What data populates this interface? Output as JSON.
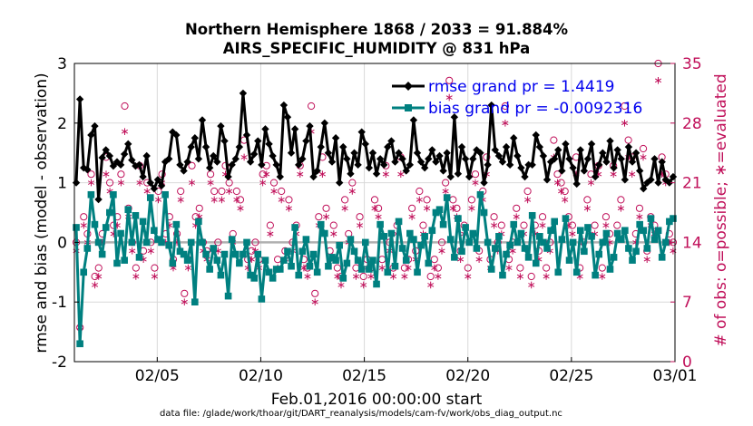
{
  "chart_data": {
    "type": "line",
    "title_line1": "Northern Hemisphere 1868 / 2033 = 91.884%",
    "title_line2": "AIRS_SPECIFIC_HUMIDITY @ 831 hPa",
    "ylabel_left": "rmse and bias (model - observation)",
    "ylabel_right": "# of obs: o=possible; ∗=evaluated",
    "xlabel": "Feb.01,2016 00:00:00 start",
    "footnote": "data file: /glade/work/thoar/git/DART_reanalysis/models/cam-fv/work/obs_diag_output.nc",
    "ylim_left": [
      -2,
      3
    ],
    "ylim_right": [
      0,
      35
    ],
    "xlim": [
      1,
      30
    ],
    "yticks_left": [
      "-2",
      "-1",
      "0",
      "1",
      "2",
      "3"
    ],
    "yticks_right": [
      "0",
      "7",
      "14",
      "21",
      "28",
      "35"
    ],
    "x_ticks": [
      {
        "label": "02/05",
        "value": 5
      },
      {
        "label": "02/10",
        "value": 10
      },
      {
        "label": "02/15",
        "value": 15
      },
      {
        "label": "02/20",
        "value": 20
      },
      {
        "label": "02/25",
        "value": 25
      },
      {
        "label": "03/01",
        "value": 30
      }
    ],
    "colors": {
      "rmse": "#000000",
      "bias": "#008080",
      "obs": "#c0105a",
      "zero": "#b0b0b0",
      "grid": "#d9d9d9"
    },
    "series": [
      {
        "name": "rmse",
        "legend": "rmse grand pr = 1.4419",
        "marker": "diamond",
        "values": [
          1.0,
          2.4,
          1.25,
          1.22,
          1.8,
          1.95,
          0.72,
          1.42,
          1.55,
          1.45,
          1.28,
          1.35,
          1.3,
          1.48,
          1.65,
          1.38,
          1.28,
          1.3,
          1.1,
          1.45,
          1.0,
          0.9,
          1.05,
          0.95,
          1.35,
          1.4,
          1.85,
          1.8,
          1.3,
          1.2,
          1.35,
          1.6,
          1.75,
          1.4,
          2.05,
          1.6,
          1.25,
          1.45,
          1.35,
          1.95,
          1.7,
          1.1,
          1.3,
          1.4,
          1.6,
          2.5,
          1.8,
          1.35,
          1.48,
          1.7,
          1.3,
          1.9,
          1.65,
          1.45,
          1.3,
          1.1,
          2.3,
          2.1,
          1.5,
          1.9,
          1.3,
          1.4,
          1.7,
          1.95,
          1.1,
          1.2,
          1.6,
          2.0,
          1.5,
          1.35,
          1.75,
          1.0,
          1.6,
          1.4,
          1.15,
          1.5,
          1.3,
          1.85,
          1.65,
          1.25,
          1.5,
          1.15,
          1.4,
          1.3,
          1.6,
          1.7,
          1.35,
          1.5,
          1.4,
          1.2,
          1.3,
          2.05,
          1.5,
          1.35,
          1.25,
          1.4,
          1.55,
          1.35,
          1.45,
          1.2,
          1.5,
          1.1,
          2.1,
          1.15,
          1.6,
          1.4,
          1.1,
          1.4,
          1.55,
          1.5,
          1.0,
          1.3,
          2.3,
          1.55,
          1.45,
          1.35,
          1.6,
          1.3,
          1.75,
          1.45,
          1.25,
          1.1,
          1.3,
          1.3,
          1.8,
          1.6,
          1.45,
          1.05,
          1.35,
          1.4,
          1.55,
          1.2,
          1.65,
          1.4,
          1.25,
          0.98,
          1.55,
          1.2,
          1.4,
          1.65,
          1.1,
          1.3,
          1.5,
          1.35,
          1.7,
          1.25,
          1.55,
          1.4,
          1.05,
          1.6,
          1.35,
          1.5,
          1.2,
          0.9,
          1.0,
          1.05,
          1.4,
          1.0,
          1.35,
          1.05,
          1.0,
          1.1
        ]
      },
      {
        "name": "bias",
        "legend": "bias grand pr = -0.0092316",
        "marker": "square",
        "values": [
          0.25,
          -1.7,
          -0.5,
          -0.1,
          0.8,
          0.3,
          0.0,
          -0.2,
          0.25,
          0.5,
          0.8,
          -0.35,
          0.15,
          -0.3,
          0.55,
          0.0,
          0.45,
          -0.25,
          0.35,
          0.0,
          0.75,
          0.2,
          0.05,
          0.0,
          0.8,
          -0.05,
          -0.35,
          0.3,
          -0.15,
          -0.2,
          -0.3,
          0.0,
          -1.0,
          0.35,
          0.0,
          -0.2,
          -0.45,
          -0.1,
          -0.3,
          -0.55,
          -0.2,
          -0.9,
          0.05,
          -0.2,
          -0.35,
          -0.2,
          0.0,
          -0.55,
          -0.6,
          -0.2,
          -0.95,
          -0.3,
          -0.5,
          -0.6,
          -0.45,
          -0.45,
          -0.3,
          -0.15,
          -0.4,
          0.25,
          -0.55,
          -0.15,
          0.05,
          -0.4,
          -0.2,
          -0.5,
          0.3,
          0.15,
          -0.4,
          -0.25,
          -0.3,
          -0.05,
          -0.6,
          -0.35,
          0.05,
          -0.15,
          -0.3,
          -0.45,
          0.0,
          -0.45,
          -0.3,
          -0.7,
          0.3,
          0.1,
          -0.5,
          0.15,
          -0.4,
          0.35,
          -0.1,
          -0.3,
          0.15,
          0.05,
          -0.5,
          -0.05,
          0.1,
          -0.35,
          0.2,
          0.5,
          0.55,
          0.3,
          0.75,
          0.05,
          -0.25,
          0.4,
          -0.15,
          0.25,
          0.0,
          0.15,
          -0.1,
          0.8,
          0.5,
          0.0,
          -0.45,
          -0.1,
          0.1,
          -0.55,
          -0.2,
          -0.05,
          0.3,
          0.0,
          0.15,
          -0.1,
          -0.25,
          0.45,
          -0.35,
          0.1,
          0.0,
          -0.1,
          0.2,
          0.35,
          -0.5,
          0.05,
          0.4,
          -0.3,
          0.0,
          -0.5,
          0.2,
          -0.15,
          0.25,
          0.1,
          -0.55,
          -0.2,
          0.0,
          0.15,
          -0.45,
          -0.25,
          0.15,
          0.05,
          0.2,
          -0.1,
          -0.3,
          -0.15,
          0.3,
          0.2,
          -0.1,
          0.4,
          0.05,
          0.2,
          -0.25,
          0.0,
          0.35,
          0.4
        ]
      },
      {
        "name": "possible",
        "legend": "o=possible",
        "marker": "circle",
        "axis": "right",
        "values": [
          14,
          4,
          17,
          15,
          22,
          10,
          11,
          15,
          24,
          21,
          16,
          17,
          22,
          30,
          18,
          14,
          11,
          23,
          13,
          21,
          14,
          11,
          20,
          22,
          15,
          17,
          12,
          15,
          20,
          8,
          12,
          23,
          17,
          18,
          14,
          13,
          22,
          20,
          14,
          20,
          23,
          21,
          15,
          20,
          19,
          26,
          12,
          13,
          14,
          12,
          22,
          23,
          16,
          21,
          12,
          20,
          13,
          19,
          14,
          16,
          23,
          12,
          11,
          30,
          8,
          17,
          24,
          18,
          13,
          16,
          11,
          10,
          19,
          15,
          21,
          11,
          17,
          10,
          12,
          11,
          19,
          18,
          12,
          23,
          14,
          11,
          16,
          24,
          11,
          12,
          18,
          13,
          20,
          16,
          19,
          10,
          12,
          11,
          14,
          21,
          33,
          19,
          18,
          13,
          16,
          11,
          19,
          22,
          13,
          20,
          24,
          12,
          17,
          14,
          16,
          30,
          12,
          14,
          18,
          11,
          16,
          20,
          10,
          16,
          13,
          17,
          11,
          14,
          26,
          22,
          21,
          20,
          17,
          16,
          24,
          11,
          14,
          19,
          22,
          16,
          23,
          11,
          17,
          15,
          23,
          16,
          19,
          30,
          26,
          24,
          15,
          18,
          25,
          13,
          17,
          16,
          35,
          24,
          22,
          15,
          14
        ]
      },
      {
        "name": "evaluated",
        "legend": "∗=evaluated",
        "marker": "asterisk",
        "axis": "right",
        "values": [
          13,
          4,
          16,
          14,
          21,
          9,
          10,
          14,
          22,
          20,
          15,
          16,
          21,
          27,
          17,
          13,
          10,
          21,
          12,
          20,
          13,
          10,
          19,
          21,
          14,
          16,
          11,
          14,
          19,
          7,
          11,
          21,
          16,
          17,
          13,
          12,
          21,
          19,
          13,
          19,
          22,
          20,
          14,
          19,
          18,
          24,
          11,
          12,
          13,
          11,
          21,
          22,
          15,
          20,
          11,
          19,
          12,
          18,
          13,
          15,
          22,
          11,
          10,
          27,
          7,
          16,
          22,
          17,
          12,
          15,
          10,
          9,
          18,
          14,
          20,
          10,
          16,
          9,
          11,
          10,
          18,
          17,
          11,
          22,
          13,
          10,
          15,
          22,
          10,
          11,
          17,
          12,
          19,
          15,
          18,
          9,
          11,
          10,
          13,
          20,
          31,
          18,
          17,
          12,
          15,
          10,
          18,
          21,
          12,
          19,
          22,
          11,
          16,
          13,
          15,
          28,
          11,
          13,
          17,
          10,
          15,
          19,
          9,
          15,
          12,
          16,
          10,
          13,
          24,
          21,
          20,
          19,
          16,
          15,
          22,
          10,
          13,
          18,
          21,
          15,
          22,
          10,
          16,
          14,
          22,
          15,
          18,
          28,
          24,
          22,
          14,
          17,
          24,
          12,
          16,
          15,
          33,
          22,
          21,
          14,
          13
        ]
      }
    ]
  }
}
